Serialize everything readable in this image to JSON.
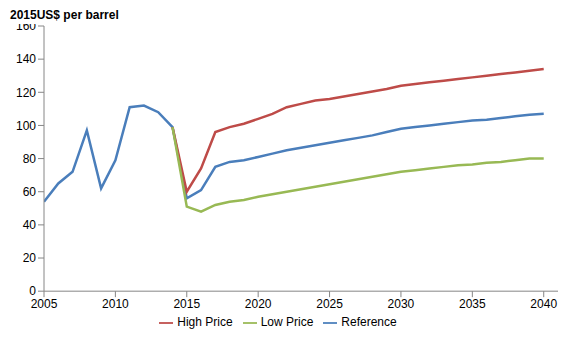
{
  "chart_data": {
    "type": "line",
    "y_label": "2015US$ per barrel",
    "x": [
      2005,
      2006,
      2007,
      2008,
      2009,
      2010,
      2011,
      2012,
      2013,
      2014,
      2015,
      2016,
      2017,
      2018,
      2019,
      2020,
      2021,
      2022,
      2023,
      2024,
      2025,
      2026,
      2027,
      2028,
      2029,
      2030,
      2031,
      2032,
      2033,
      2034,
      2035,
      2036,
      2037,
      2038,
      2039,
      2040
    ],
    "series": [
      {
        "name": "Reference",
        "color": "#4a7ebb",
        "values": [
          54,
          65,
          72,
          97,
          62,
          79,
          111,
          112,
          108,
          99,
          56,
          61,
          75,
          78,
          79,
          81,
          83,
          85,
          86.5,
          88,
          89.5,
          91,
          92.5,
          94,
          96,
          98,
          99,
          100,
          101,
          102,
          103,
          103.5,
          104.5,
          105.5,
          106.5,
          107
        ]
      },
      {
        "name": "High Price",
        "color": "#be4b48",
        "values": [
          null,
          null,
          null,
          null,
          null,
          null,
          null,
          null,
          null,
          99,
          60,
          74,
          96,
          99,
          101,
          104,
          107,
          111,
          113,
          115,
          116,
          117.5,
          119,
          120.5,
          122,
          124,
          125,
          126,
          127,
          128,
          129,
          130,
          131,
          132,
          133,
          134
        ]
      },
      {
        "name": "Low Price",
        "color": "#98b954",
        "values": [
          null,
          null,
          null,
          null,
          null,
          null,
          null,
          null,
          null,
          99,
          51,
          48,
          52,
          54,
          55,
          57,
          58.5,
          60,
          61.5,
          63,
          64.5,
          66,
          67.5,
          69,
          70.5,
          72,
          73,
          74,
          75,
          76,
          76.5,
          77.5,
          78,
          79,
          80,
          80
        ]
      }
    ],
    "xlim": [
      2005,
      2041
    ],
    "xticks": [
      2005,
      2010,
      2015,
      2020,
      2025,
      2030,
      2035,
      2040
    ],
    "ylim": [
      0,
      160
    ],
    "yticks": [
      0,
      20,
      40,
      60,
      80,
      100,
      120,
      140,
      160
    ],
    "grid": false,
    "legend": "bottom"
  }
}
